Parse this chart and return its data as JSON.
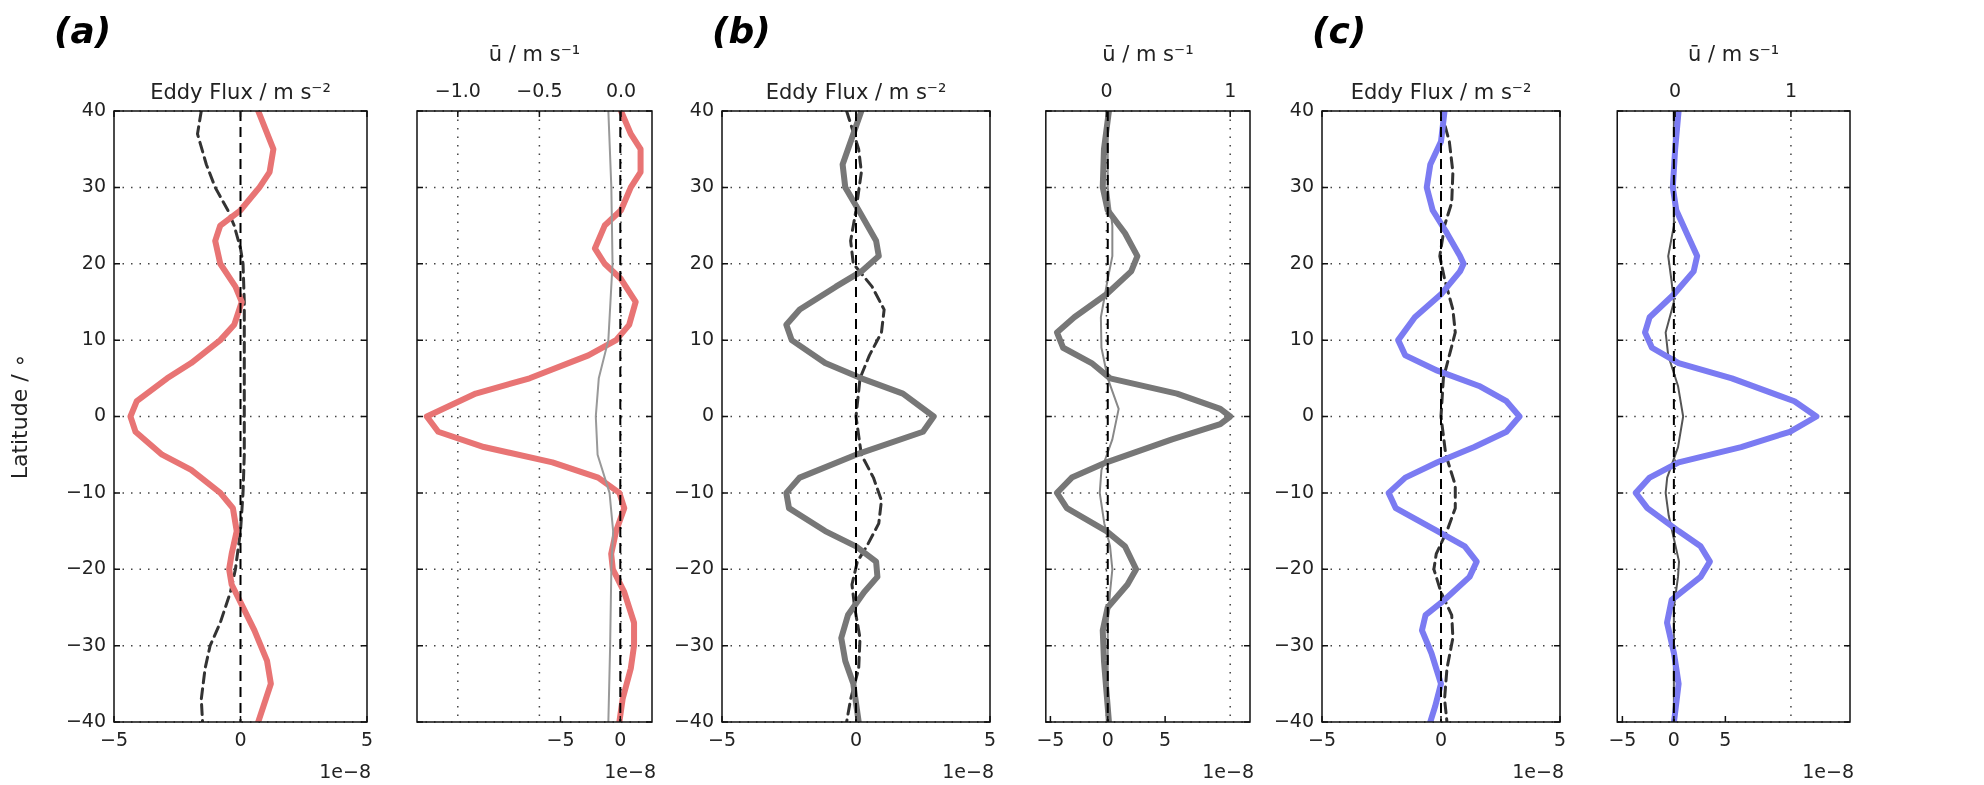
{
  "chart_data": [
    {
      "type": "line",
      "title": "Eddy Flux / m s⁻²",
      "annotations": [
        "(a)"
      ],
      "xlabel": "1e−8",
      "ylabel": "Latitude / ∘",
      "xlim": [
        -5,
        5
      ],
      "xticks": [
        -5,
        0,
        5
      ],
      "ylim": [
        -40,
        40
      ],
      "yticks": [
        -40,
        -30,
        -20,
        -10,
        0,
        10,
        20,
        30,
        40
      ],
      "grid": "y",
      "series": [
        {
          "color": "#e87474",
          "x": [
            0.7,
            1.3,
            1.15,
            0.75,
            0,
            -0.8,
            -1.0,
            -0.8,
            -0.2,
            0.05,
            -0.25,
            -0.8,
            -1.95,
            -2.9,
            -4.1,
            -4.35,
            -4.15,
            -3.1,
            -1.95,
            -0.8,
            -0.3,
            -0.15,
            -0.35,
            -0.45,
            -0.35,
            0.1,
            0.55,
            1.05,
            1.2,
            0.9,
            0.7
          ],
          "values": [
            40,
            35,
            32,
            30,
            27,
            25,
            23,
            20,
            17,
            15,
            12,
            10,
            7,
            5,
            2,
            0,
            -2,
            -5,
            -7,
            -10,
            -12,
            -15,
            -18,
            -20,
            -22,
            -25,
            -28,
            -32,
            -35,
            -38,
            -40
          ]
        },
        {
          "color": "#333333",
          "line_style": "dashed",
          "x": [
            -1.55,
            -1.7,
            -1.35,
            -1.0,
            -0.5,
            -0.25,
            0,
            0.1,
            0.15,
            0.15,
            0.15,
            0.15,
            0.15,
            0.1,
            0,
            -0.2,
            -0.4,
            -0.8,
            -1.2,
            -1.4,
            -1.55,
            -1.5
          ],
          "values": [
            40,
            37,
            33,
            30,
            27,
            25,
            22,
            20,
            15,
            10,
            5,
            0,
            -5,
            -10,
            -15,
            -20,
            -23,
            -27,
            -30,
            -33,
            -37,
            -40
          ]
        }
      ],
      "ref_lines": [
        {
          "axis": "x",
          "value": 0,
          "color": "#000000",
          "line_style": "dashed"
        }
      ]
    },
    {
      "type": "line",
      "x2label": "ū / m s⁻¹",
      "xlabel": "1e−8",
      "xlim": [
        -17,
        2.65
      ],
      "xticks": [
        -5,
        0
      ],
      "x2lim": [
        -1.25,
        0.19
      ],
      "x2ticks": [
        {
          "value": -1,
          "label": "−1.0"
        },
        {
          "value": -0.5,
          "label": "−0.5"
        },
        {
          "value": 0,
          "label": "0.0"
        }
      ],
      "ylim": [
        -40,
        40
      ],
      "yticks": [
        -40,
        -30,
        -20,
        -10,
        0,
        10,
        20,
        30,
        40
      ],
      "grid": true,
      "tick_labels": "x",
      "series": [
        {
          "color": "#999999",
          "x": [
            -1.0,
            -0.75,
            -0.65,
            -1.0,
            -1.8,
            -2.05,
            -1.9,
            -0.9,
            -0.6,
            -0.75,
            -0.85,
            -1.0
          ],
          "values": [
            40,
            30,
            20,
            10,
            5,
            0,
            -5,
            -10,
            -15,
            -20,
            -30,
            -40
          ]
        },
        {
          "color": "#e87474",
          "axis": "x2",
          "x": [
            0,
            0.06,
            0.12,
            0.12,
            0.06,
            0,
            -0.1,
            -0.16,
            -0.1,
            0,
            0.09,
            0.05,
            -0.03,
            -0.2,
            -0.56,
            -0.89,
            -1.19,
            -1.12,
            -0.84,
            -0.42,
            -0.14,
            -0.01,
            0.02,
            -0.03,
            -0.06,
            -0.05,
            0.02,
            0.08,
            0.08,
            0.06,
            0.01,
            -0.01
          ],
          "values": [
            40,
            37,
            35,
            32,
            30,
            27,
            25,
            22,
            20,
            18,
            15,
            12,
            10,
            8,
            5,
            3,
            0,
            -2,
            -4,
            -6,
            -8,
            -10,
            -12,
            -15,
            -18,
            -20,
            -23,
            -27,
            -30,
            -33,
            -37,
            -40
          ]
        }
      ],
      "ref_lines": [
        {
          "axis": "x",
          "value": 0,
          "color": "#000000",
          "line_style": "dashed"
        }
      ]
    },
    {
      "type": "line",
      "title": "Eddy Flux / m s⁻²",
      "annotations": [
        "(b)"
      ],
      "xlabel": "1e−8",
      "xlim": [
        -5,
        5
      ],
      "xticks": [
        -5,
        0,
        5
      ],
      "ylim": [
        -40,
        40
      ],
      "yticks": [
        -40,
        -30,
        -20,
        -10,
        0,
        10,
        20,
        30,
        40
      ],
      "grid": "y",
      "series": [
        {
          "color": "#777777",
          "x": [
            0.2,
            -0.1,
            -0.5,
            -0.4,
            0.1,
            0.75,
            0.85,
            0.2,
            -0.75,
            -2.1,
            -2.6,
            -2.4,
            -1.15,
            0.2,
            1.75,
            2.9,
            2.5,
            0,
            -2.1,
            -2.6,
            -2.5,
            -1.15,
            0,
            0.75,
            0.8,
            0.3,
            -0.3,
            -0.55,
            -0.4,
            -0.1,
            0.1
          ],
          "values": [
            40,
            37,
            33,
            30,
            27,
            23,
            21,
            19,
            17,
            14,
            12,
            10,
            7,
            5,
            3,
            0,
            -2,
            -5,
            -8,
            -10,
            -12,
            -15,
            -17,
            -19,
            -21,
            -23,
            -26,
            -29,
            -32,
            -35,
            -40
          ]
        },
        {
          "color": "#333333",
          "line_style": "dashed",
          "x": [
            -0.35,
            0.1,
            0.2,
            0,
            -0.2,
            -0.1,
            0.6,
            1.05,
            0.95,
            0.5,
            0.15,
            0,
            0.2,
            0.65,
            0.95,
            0.85,
            0.4,
            0.05,
            -0.15,
            -0.05,
            0.15,
            0.1,
            -0.2,
            -0.35
          ],
          "values": [
            40,
            35,
            32,
            27,
            23,
            20,
            17,
            14,
            11,
            8,
            5,
            0,
            -5,
            -8,
            -11,
            -14,
            -17,
            -19,
            -22,
            -25,
            -29,
            -33,
            -37,
            -40
          ]
        }
      ],
      "ref_lines": [
        {
          "axis": "x",
          "value": 0,
          "color": "#000000",
          "line_style": "dashed"
        }
      ]
    },
    {
      "type": "line",
      "x2label": "ū / m s⁻¹",
      "xlabel": "1e−8",
      "xlim": [
        -5.4,
        12.4
      ],
      "xticks": [
        -5,
        0,
        5
      ],
      "x2lim": [
        -0.49,
        1.16
      ],
      "x2ticks": [
        {
          "value": 0,
          "label": "0"
        },
        {
          "value": 1,
          "label": "1"
        }
      ],
      "ylim": [
        -40,
        40
      ],
      "yticks": [
        -40,
        -30,
        -20,
        -10,
        0,
        10,
        20,
        30,
        40
      ],
      "grid": true,
      "tick_labels": "x",
      "series": [
        {
          "color": "#777777",
          "axis": "x2",
          "x": [
            0.02,
            -0.02,
            -0.03,
            0.01,
            0.15,
            0.25,
            0.2,
            0,
            -0.26,
            -0.4,
            -0.35,
            -0.12,
            0.03,
            0.57,
            0.92,
            1.0,
            0.92,
            0.53,
            0,
            -0.28,
            -0.4,
            -0.32,
            0,
            0.15,
            0.24,
            0.17,
            0.01,
            -0.03,
            -0.02,
            0,
            0.02
          ],
          "values": [
            40,
            35,
            30,
            27,
            24,
            21,
            19,
            16,
            13,
            11,
            9,
            7,
            5,
            3,
            1,
            0,
            -1,
            -3,
            -6,
            -8,
            -10,
            -12,
            -15,
            -17,
            -20,
            -22,
            -25,
            -28,
            -32,
            -36,
            -40
          ]
        },
        {
          "color": "#888888",
          "x": [
            0,
            0,
            0.4,
            0.4,
            0,
            -0.6,
            -0.55,
            0,
            0.95,
            0.4,
            -0.55,
            -0.7,
            -0.3,
            0.2,
            0.4,
            0.2,
            0,
            0
          ],
          "values": [
            40,
            30,
            25,
            21,
            18,
            13,
            9,
            5,
            1,
            -3,
            -7,
            -10,
            -14,
            -17,
            -20,
            -23,
            -27,
            -40
          ]
        }
      ],
      "ref_lines": [
        {
          "axis": "x",
          "value": 0,
          "color": "#000000",
          "line_style": "dashed"
        }
      ]
    },
    {
      "type": "line",
      "title": "Eddy Flux / m s⁻²",
      "annotations": [
        "(c)"
      ],
      "xlabel": "1e−8",
      "xlim": [
        -5,
        5
      ],
      "xticks": [
        -5,
        0,
        5
      ],
      "ylim": [
        -40,
        40
      ],
      "yticks": [
        -40,
        -30,
        -20,
        -10,
        0,
        10,
        20,
        30,
        40
      ],
      "grid": "y",
      "series": [
        {
          "color": "#7b7bf2",
          "x": [
            0.15,
            0,
            -0.45,
            -0.6,
            -0.35,
            0.25,
            0.8,
            0.95,
            0.8,
            0,
            -1.1,
            -1.8,
            -1.5,
            -0.15,
            1.6,
            2.75,
            3.3,
            2.75,
            1.4,
            -0.15,
            -1.5,
            -2.2,
            -1.9,
            -0.15,
            1.0,
            1.5,
            1.2,
            0.15,
            -0.65,
            -0.8,
            -0.4,
            0,
            -0.25,
            -0.45
          ],
          "values": [
            40,
            36,
            33,
            30,
            27,
            24,
            21,
            20,
            19,
            16,
            13,
            10,
            8,
            6,
            4,
            2,
            0,
            -2,
            -4,
            -6,
            -8,
            -10,
            -12,
            -15,
            -17,
            -19,
            -21,
            -24,
            -26,
            -28,
            -31,
            -35,
            -38,
            -40
          ]
        },
        {
          "color": "#333333",
          "line_style": "dashed",
          "x": [
            0,
            0.35,
            0.5,
            0.45,
            0.15,
            -0.05,
            0.15,
            0.5,
            0.6,
            0.35,
            0.1,
            0,
            0.2,
            0.6,
            0.6,
            0.25,
            -0.2,
            -0.3,
            0,
            0.45,
            0.5,
            0.25,
            0.15,
            0.25
          ],
          "values": [
            40,
            36,
            32,
            28,
            25,
            21,
            18,
            14,
            11,
            8,
            5,
            0,
            -5,
            -9,
            -12,
            -15,
            -18,
            -20,
            -23,
            -26,
            -29,
            -33,
            -37,
            -40
          ]
        }
      ],
      "ref_lines": [
        {
          "axis": "x",
          "value": 0,
          "color": "#000000",
          "line_style": "dashed"
        }
      ]
    },
    {
      "type": "line",
      "x2label": "ū / m s⁻¹",
      "xlabel": "1e−8",
      "xlim": [
        -5.5,
        17.1
      ],
      "xticks": [
        -5,
        0,
        5
      ],
      "x2lim": [
        -0.5,
        1.51
      ],
      "x2ticks": [
        {
          "value": 0,
          "label": "0"
        },
        {
          "value": 1,
          "label": "1"
        }
      ],
      "ylim": [
        -40,
        40
      ],
      "yticks": [
        -40,
        -30,
        -20,
        -10,
        0,
        10,
        20,
        30,
        40
      ],
      "grid": true,
      "tick_labels": "x",
      "series": [
        {
          "color": "#7b7bf2",
          "axis": "x2",
          "x": [
            0.03,
            0,
            -0.02,
            0.01,
            0.1,
            0.19,
            0.16,
            -0.01,
            -0.22,
            -0.26,
            -0.2,
            0.03,
            0.49,
            1.03,
            1.22,
            0.99,
            0.57,
            0.03,
            -0.22,
            -0.34,
            -0.24,
            0.03,
            0.22,
            0.3,
            0.22,
            -0.03,
            -0.07,
            -0.01,
            0.03,
            -0.01
          ],
          "values": [
            40,
            35,
            30,
            27,
            24,
            21,
            19,
            16,
            13,
            11,
            9,
            7,
            5,
            2,
            0,
            -2,
            -4,
            -6,
            -8,
            -10,
            -12,
            -15,
            -17,
            -19,
            -21,
            -24,
            -27,
            -31,
            -35,
            -40
          ]
        },
        {
          "color": "#555555",
          "x": [
            0,
            0,
            -0.55,
            -0.25,
            0,
            -0.8,
            -0.55,
            0.4,
            0.9,
            0.4,
            -0.65,
            -0.8,
            -0.5,
            0,
            0.5,
            0.4,
            0,
            0
          ],
          "values": [
            40,
            25,
            21,
            18,
            15,
            11,
            8,
            4,
            0,
            -4,
            -8,
            -10,
            -13,
            -16,
            -19,
            -21,
            -25,
            -40
          ]
        }
      ],
      "ref_lines": [
        {
          "axis": "x",
          "value": 0,
          "color": "#000000",
          "line_style": "dashed"
        }
      ]
    }
  ]
}
